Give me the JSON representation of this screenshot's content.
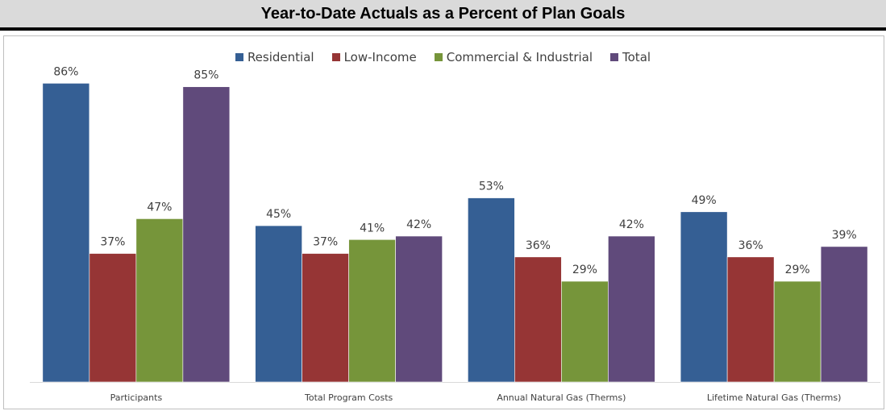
{
  "title": "Year-to-Date Actuals as a Percent of Plan Goals",
  "colors": {
    "Residential": "#355f94",
    "Low-Income": "#963535",
    "Commercial & Industrial": "#76953a",
    "Total": "#604a7b"
  },
  "chart_data": {
    "type": "bar",
    "title": "Year-to-Date Actuals as a Percent of Plan Goals",
    "categories": [
      "Participants",
      "Total Program Costs",
      "Annual Natural Gas (Therms)",
      "Lifetime Natural Gas (Therms)"
    ],
    "series": [
      {
        "name": "Residential",
        "values": [
          86,
          45,
          53,
          49
        ],
        "labels": [
          "86%",
          "45%",
          "53%",
          "49%"
        ]
      },
      {
        "name": "Low-Income",
        "values": [
          37,
          37,
          36,
          36
        ],
        "labels": [
          "37%",
          "37%",
          "36%",
          "36%"
        ]
      },
      {
        "name": "Commercial & Industrial",
        "values": [
          47,
          41,
          29,
          29
        ],
        "labels": [
          "47%",
          "41%",
          "29%",
          "29%"
        ]
      },
      {
        "name": "Total",
        "values": [
          85,
          42,
          42,
          39
        ],
        "labels": [
          "85%",
          "42%",
          "42%",
          "39%"
        ]
      }
    ],
    "xlabel": "",
    "ylabel": "",
    "ylim": [
      0,
      100
    ],
    "grid": false,
    "legend_position": "top"
  }
}
